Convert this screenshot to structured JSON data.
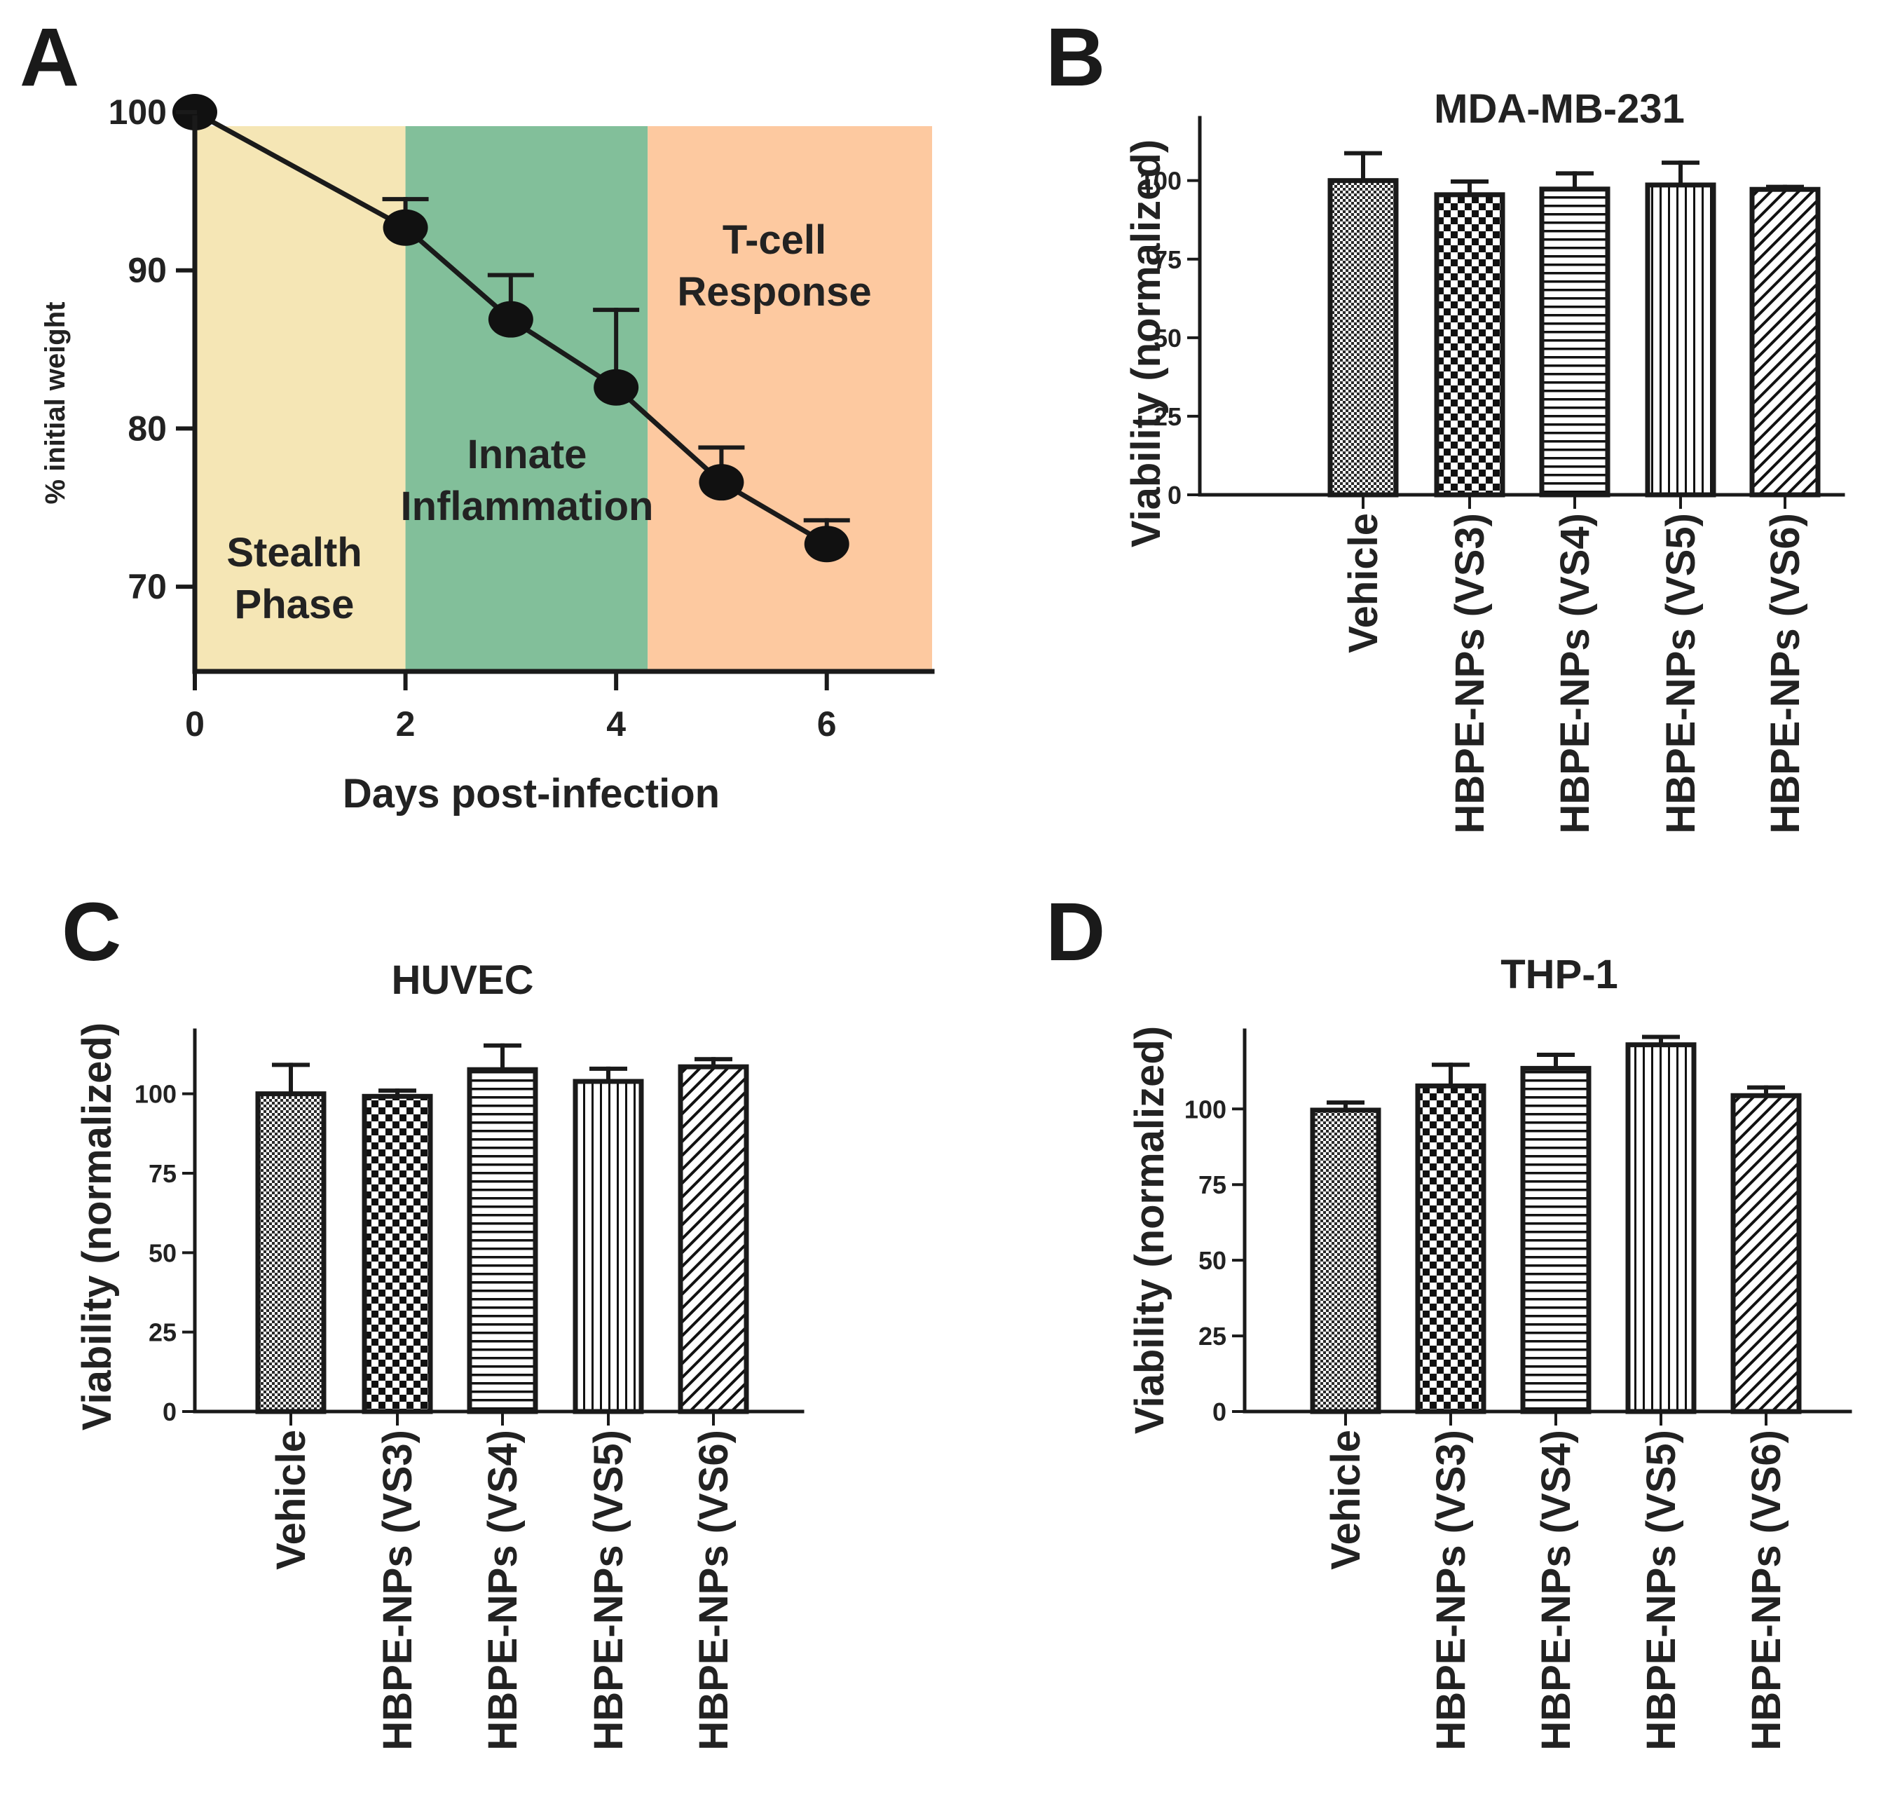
{
  "chart_data": [
    {
      "panel": "A",
      "type": "line",
      "title": "",
      "xlabel": "Days post-infection",
      "ylabel": "% initial weight",
      "xlim": [
        0,
        7
      ],
      "ylim": [
        65,
        100
      ],
      "xticks": [
        0,
        2,
        4,
        6
      ],
      "yticks": [
        70,
        80,
        90,
        100
      ],
      "regions": [
        {
          "lines": [
            "Stealth",
            "Phase"
          ],
          "x_start": 0,
          "x_end": 2,
          "color": "#f5e6b5"
        },
        {
          "lines": [
            "Innate",
            "Inflammation"
          ],
          "x_start": 2,
          "x_end": 4.3,
          "color": "#82bf9a"
        },
        {
          "lines": [
            "T-cell",
            "Response"
          ],
          "x_start": 4.3,
          "x_end": 7,
          "color": "#fdc9a0"
        }
      ],
      "series": [
        {
          "name": "% initial weight",
          "x": [
            0,
            2,
            3,
            4,
            5,
            6
          ],
          "y": [
            100,
            92.7,
            86.9,
            82.6,
            76.6,
            72.7
          ],
          "error": [
            0,
            1.8,
            2.8,
            4.9,
            2.2,
            1.5
          ]
        }
      ]
    },
    {
      "panel": "B",
      "type": "bar",
      "title": "MDA-MB-231",
      "xlabel": "",
      "ylabel": "Viability (normalized)",
      "ylim": [
        0,
        120
      ],
      "yticks": [
        0,
        25,
        50,
        75,
        100
      ],
      "categories": [
        "Vehicle",
        "HBPE-NPs (VS3)",
        "HBPE-NPs (VS4)",
        "HBPE-NPs (VS5)",
        "HBPE-NPs (VS6)"
      ],
      "values": [
        100,
        95.5,
        97.3,
        98.6,
        97.2
      ],
      "errors": [
        8.7,
        4.2,
        5,
        7.1,
        0.8
      ]
    },
    {
      "panel": "C",
      "type": "bar",
      "title": "HUVEC",
      "xlabel": "",
      "ylabel": "Viability (normalized)",
      "ylim": [
        0,
        120
      ],
      "yticks": [
        0,
        25,
        50,
        75,
        100
      ],
      "categories": [
        "Vehicle",
        "HBPE-NPs (VS3)",
        "HBPE-NPs (VS4)",
        "HBPE-NPs (VS5)",
        "HBPE-NPs (VS6)"
      ],
      "values": [
        100,
        99.2,
        107.6,
        103.9,
        108.5
      ],
      "errors": [
        9.1,
        1.8,
        7.6,
        4,
        2.4
      ]
    },
    {
      "panel": "D",
      "type": "bar",
      "title": "THP-1",
      "xlabel": "",
      "ylabel": "Viability (normalized)",
      "ylim": [
        0,
        126
      ],
      "yticks": [
        0,
        25,
        50,
        75,
        100
      ],
      "categories": [
        "Vehicle",
        "HBPE-NPs (VS3)",
        "HBPE-NPs (VS4)",
        "HBPE-NPs (VS5)",
        "HBPE-NPs (VS6)"
      ],
      "values": [
        99.6,
        107.6,
        113.4,
        121.2,
        104.4
      ],
      "errors": [
        2.5,
        7,
        4.5,
        2.6,
        2.7
      ]
    }
  ],
  "panel_letters": [
    "A",
    "B",
    "C",
    "D"
  ],
  "colors": {
    "ink": "#1a1a1a",
    "bar_fill": "#ffffff"
  }
}
